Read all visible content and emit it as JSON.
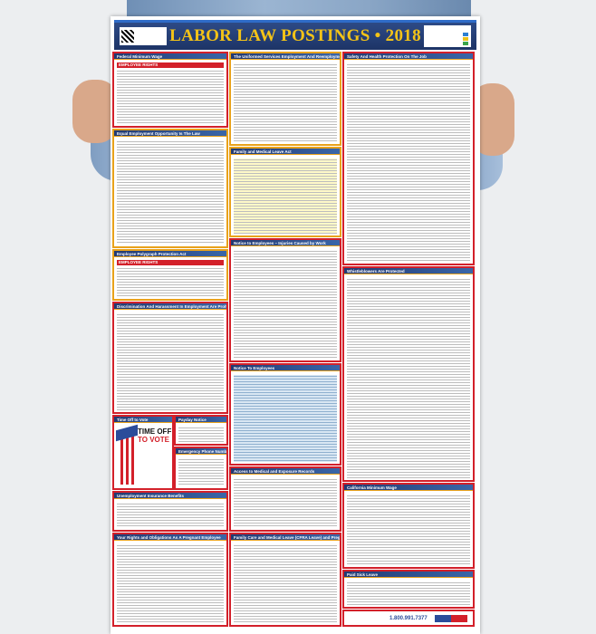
{
  "poster": {
    "title": "LABOR LAW POSTINGS • 2018",
    "sections": {
      "federal_min_wage": {
        "title": "Federal Minimum Wage",
        "banner": "EMPLOYEE RIGHTS"
      },
      "userra": {
        "title": "The Uniformed Services Employment And Reemployment Rights Act"
      },
      "safety": {
        "title": "Safety And Health Protection On The Job"
      },
      "eeo": {
        "title": "Equal Employment Opportunity Is The Law"
      },
      "fmla": {
        "title": "Family and Medical Leave Act"
      },
      "injuries": {
        "title": "Notice to Employees – Injuries Caused by Work"
      },
      "polygraph": {
        "title": "Employee Polygraph Protection Act",
        "banner": "EMPLOYEE RIGHTS"
      },
      "discrimination": {
        "title": "Discrimination And Harassment In Employment Are Prohibited By Law"
      },
      "whistleblowers": {
        "title": "Whistleblowers Are Protected"
      },
      "notice_employees": {
        "title": "Notice To Employees"
      },
      "vote": {
        "title": "Time Off to Vote",
        "headline1": "TIME OFF",
        "headline2": "TO VOTE"
      },
      "payday": {
        "title": "Payday Notice"
      },
      "emergency": {
        "title": "Emergency Phone Numbers"
      },
      "unemployment": {
        "title": "Unemployment Insurance Benefits"
      },
      "medical_records": {
        "title": "Access to Medical and Exposure Records"
      },
      "ca_min_wage": {
        "title": "California Minimum Wage"
      },
      "pregnant": {
        "title": "Your Rights and Obligations As A Pregnant Employee"
      },
      "cfra": {
        "title": "Family Care and Medical Leave (CFRA Leave) and Pregnancy Disability Leave"
      },
      "sick_leave": {
        "title": "Paid Sick Leave"
      }
    },
    "footer_phone": "1.800.991.7377"
  },
  "colors": {
    "header": "#1d3466",
    "title": "#f3c317",
    "border": "#d3202a",
    "accent": "#e9a21b"
  }
}
